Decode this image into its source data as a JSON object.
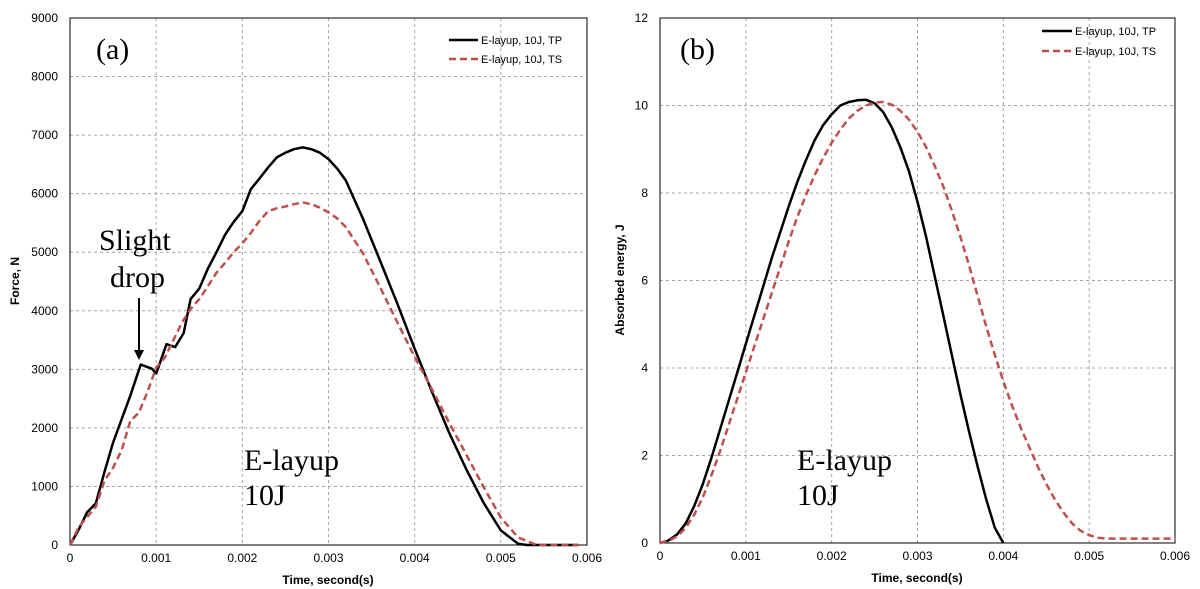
{
  "chart_data": [
    {
      "type": "line",
      "panel_label": "(a)",
      "xlabel": "Time, second(s)",
      "ylabel": "Force, N",
      "xlim": [
        0,
        0.006
      ],
      "ylim": [
        0,
        9000
      ],
      "xticks": [
        "0",
        "0.001",
        "0.002",
        "0.003",
        "0.004",
        "0.005",
        "0.006"
      ],
      "xtick_values": [
        0,
        0.001,
        0.002,
        0.003,
        0.004,
        0.005,
        0.006
      ],
      "yticks": [
        "0",
        "1000",
        "2000",
        "3000",
        "4000",
        "5000",
        "6000",
        "7000",
        "8000",
        "9000"
      ],
      "ytick_values": [
        0,
        1000,
        2000,
        3000,
        4000,
        5000,
        6000,
        7000,
        8000,
        9000
      ],
      "grid": true,
      "legend_position": "top-right",
      "annotations": [
        {
          "text_lines": [
            "Slight",
            "drop"
          ],
          "arrow_to": [
            0.00082,
            3080
          ]
        },
        {
          "text_lines": [
            "E-layup",
            "10J"
          ]
        }
      ],
      "series": [
        {
          "name": "E-layup, 10J, TP",
          "color": "#000000",
          "dash": "solid",
          "x": [
            0,
            0.0001,
            0.0002,
            0.0003,
            0.0004,
            0.0005,
            0.0006,
            0.0007,
            0.00082,
            0.00095,
            0.001,
            0.00112,
            0.00122,
            0.00132,
            0.0014,
            0.0015,
            0.0016,
            0.0017,
            0.0018,
            0.0019,
            0.002,
            0.0021,
            0.0022,
            0.0023,
            0.0024,
            0.0025,
            0.0026,
            0.0027,
            0.0028,
            0.0029,
            0.003,
            0.0031,
            0.0032,
            0.0034,
            0.0036,
            0.0038,
            0.004,
            0.0042,
            0.0044,
            0.0046,
            0.0048,
            0.005,
            0.0052,
            0.0053,
            0.0054,
            0.0055,
            0.0056,
            0.0057,
            0.0058,
            0.0059
          ],
          "y": [
            0,
            260,
            560,
            710,
            1250,
            1750,
            2150,
            2550,
            3080,
            3010,
            2930,
            3430,
            3380,
            3620,
            4200,
            4380,
            4720,
            5000,
            5300,
            5520,
            5700,
            6080,
            6260,
            6450,
            6620,
            6700,
            6760,
            6790,
            6760,
            6700,
            6590,
            6430,
            6230,
            5570,
            4850,
            4120,
            3350,
            2620,
            1920,
            1290,
            720,
            250,
            20,
            0,
            0,
            0,
            0,
            0,
            0,
            0
          ]
        },
        {
          "name": "E-layup, 10J, TS",
          "color": "#c0504d",
          "dash": "dashed",
          "x": [
            0,
            0.0001,
            0.0002,
            0.0003,
            0.0004,
            0.0005,
            0.0006,
            0.0007,
            0.0008,
            0.0009,
            0.001,
            0.0011,
            0.0012,
            0.0013,
            0.0014,
            0.0015,
            0.0016,
            0.0017,
            0.0018,
            0.0019,
            0.002,
            0.0021,
            0.0022,
            0.0023,
            0.0024,
            0.0025,
            0.0026,
            0.0027,
            0.0028,
            0.0029,
            0.003,
            0.0031,
            0.0032,
            0.0034,
            0.0036,
            0.0038,
            0.004,
            0.0042,
            0.0044,
            0.0046,
            0.0048,
            0.005,
            0.0052,
            0.0054,
            0.0055,
            0.0056,
            0.0057,
            0.0058,
            0.0059
          ],
          "y": [
            0,
            300,
            480,
            650,
            1100,
            1320,
            1620,
            2120,
            2260,
            2620,
            3030,
            3200,
            3500,
            3800,
            4030,
            4200,
            4420,
            4650,
            4820,
            5000,
            5150,
            5330,
            5540,
            5700,
            5750,
            5780,
            5820,
            5850,
            5820,
            5760,
            5680,
            5580,
            5430,
            4980,
            4400,
            3800,
            3210,
            2660,
            2090,
            1540,
            990,
            470,
            130,
            10,
            0,
            0,
            0,
            0,
            0
          ]
        }
      ]
    },
    {
      "type": "line",
      "panel_label": "(b)",
      "xlabel": "Time, second(s)",
      "ylabel": "Absorbed energy, J",
      "xlim": [
        0,
        0.006
      ],
      "ylim": [
        0,
        12
      ],
      "xticks": [
        "0",
        "0.001",
        "0.002",
        "0.003",
        "0.004",
        "0.005",
        "0.006"
      ],
      "xtick_values": [
        0,
        0.001,
        0.002,
        0.003,
        0.004,
        0.005,
        0.006
      ],
      "yticks": [
        "0",
        "2",
        "4",
        "6",
        "8",
        "10",
        "12"
      ],
      "ytick_values": [
        0,
        2,
        4,
        6,
        8,
        10,
        12
      ],
      "grid": true,
      "legend_position": "top-right",
      "annotations": [
        {
          "text_lines": [
            "E-layup",
            "10J"
          ]
        }
      ],
      "series": [
        {
          "name": "E-layup, 10J, TP",
          "color": "#000000",
          "dash": "solid",
          "x": [
            0,
            0.0001,
            0.0002,
            0.0003,
            0.0004,
            0.0005,
            0.0006,
            0.0007,
            0.0008,
            0.0009,
            0.001,
            0.0011,
            0.0012,
            0.0013,
            0.0014,
            0.0015,
            0.0016,
            0.0017,
            0.0018,
            0.0019,
            0.002,
            0.0021,
            0.0022,
            0.0023,
            0.0024,
            0.0025,
            0.0026,
            0.0027,
            0.0028,
            0.0029,
            0.003,
            0.0031,
            0.0032,
            0.0033,
            0.0034,
            0.0035,
            0.0036,
            0.0037,
            0.0038,
            0.0039,
            0.004
          ],
          "y": [
            0,
            0.06,
            0.2,
            0.45,
            0.85,
            1.35,
            1.95,
            2.6,
            3.25,
            3.9,
            4.55,
            5.2,
            5.85,
            6.5,
            7.1,
            7.7,
            8.25,
            8.75,
            9.2,
            9.55,
            9.8,
            10.0,
            10.08,
            10.12,
            10.13,
            10.05,
            9.85,
            9.5,
            9.05,
            8.5,
            7.8,
            7.0,
            6.1,
            5.2,
            4.3,
            3.4,
            2.55,
            1.75,
            1.0,
            0.35,
            0
          ]
        },
        {
          "name": "E-layup, 10J, TS",
          "color": "#c0504d",
          "dash": "dashed",
          "x": [
            0,
            0.0001,
            0.0002,
            0.0003,
            0.0004,
            0.0005,
            0.0006,
            0.0007,
            0.0008,
            0.0009,
            0.001,
            0.0011,
            0.0012,
            0.0013,
            0.0014,
            0.0015,
            0.0016,
            0.0017,
            0.0018,
            0.0019,
            0.002,
            0.0021,
            0.0022,
            0.0023,
            0.0024,
            0.0025,
            0.0026,
            0.0027,
            0.0028,
            0.0029,
            0.003,
            0.0031,
            0.0032,
            0.0033,
            0.0034,
            0.0035,
            0.0036,
            0.0037,
            0.0038,
            0.0039,
            0.004,
            0.0041,
            0.0042,
            0.0043,
            0.0044,
            0.0045,
            0.0046,
            0.0047,
            0.0048,
            0.0049,
            0.005,
            0.0051,
            0.0052,
            0.0053,
            0.0054,
            0.0055,
            0.0056,
            0.0058,
            0.006
          ],
          "y": [
            0,
            0.05,
            0.15,
            0.35,
            0.65,
            1.05,
            1.55,
            2.1,
            2.7,
            3.3,
            3.9,
            4.5,
            5.1,
            5.7,
            6.3,
            6.9,
            7.45,
            7.95,
            8.4,
            8.8,
            9.15,
            9.45,
            9.7,
            9.88,
            10.0,
            10.07,
            10.08,
            10.02,
            9.88,
            9.68,
            9.4,
            9.05,
            8.62,
            8.15,
            7.6,
            7.0,
            6.35,
            5.65,
            4.95,
            4.3,
            3.7,
            3.15,
            2.65,
            2.2,
            1.75,
            1.35,
            1.0,
            0.7,
            0.45,
            0.28,
            0.18,
            0.12,
            0.1,
            0.1,
            0.1,
            0.1,
            0.1,
            0.1,
            0.1
          ]
        }
      ]
    }
  ]
}
